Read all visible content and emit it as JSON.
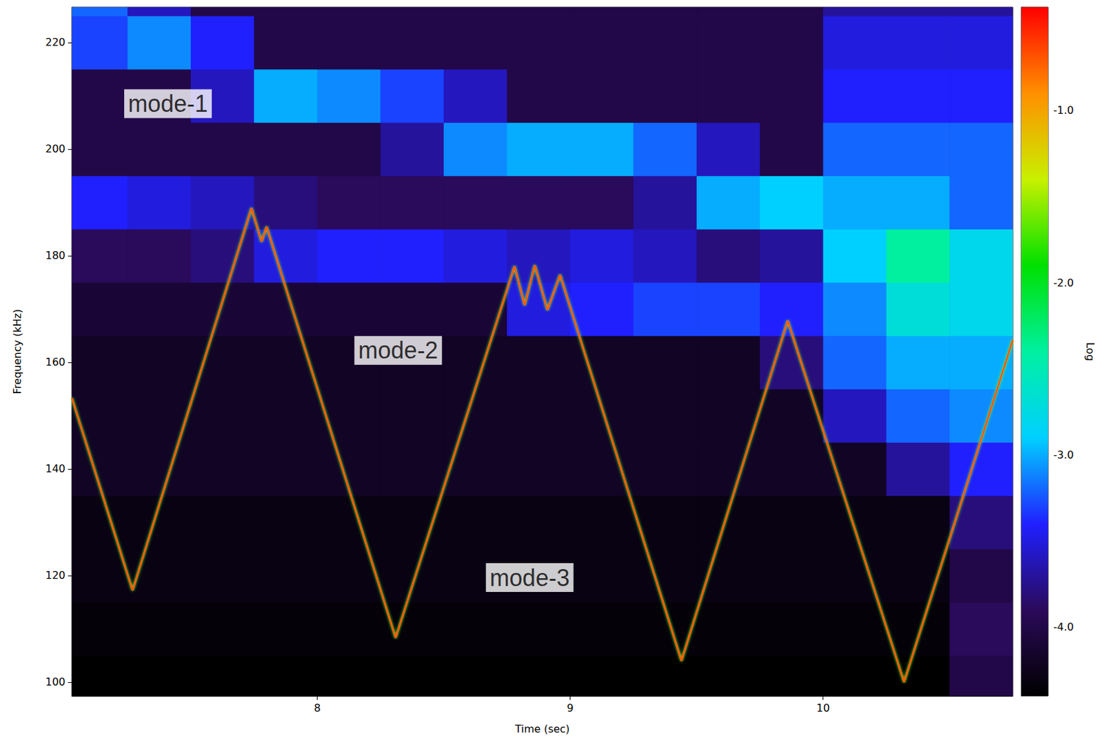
{
  "chart_data": {
    "type": "spectrogram",
    "xlabel": "Time (sec)",
    "ylabel": "Frequency (kHz)",
    "xlim": [
      7.03,
      10.75
    ],
    "xticks": [
      8,
      9,
      10
    ],
    "ylim": [
      97.4,
      226.6
    ],
    "yticks": [
      100,
      120,
      140,
      160,
      180,
      200,
      220
    ],
    "grid": false,
    "spectrogram": {
      "t_edges": [
        7.0,
        7.25,
        7.5,
        7.75,
        8.0,
        8.25,
        8.5,
        8.75,
        9.0,
        9.25,
        9.5,
        9.75,
        10.0,
        10.25,
        10.5,
        10.75
      ],
      "f_edges": [
        95,
        105,
        115,
        125,
        135,
        145,
        155,
        165,
        175,
        185,
        195,
        205,
        215,
        225,
        235
      ],
      "values": [
        [
          -4.4,
          -4.4,
          -4.4,
          -4.4,
          -4.4,
          -4.4,
          -4.4,
          -4.4,
          -4.4,
          -4.4,
          -4.4,
          -4.4,
          -4.4,
          -4.4,
          -4.0
        ],
        [
          -4.35,
          -4.35,
          -4.35,
          -4.35,
          -4.35,
          -4.35,
          -4.35,
          -4.35,
          -4.35,
          -4.35,
          -4.35,
          -4.35,
          -4.35,
          -4.35,
          -3.9
        ],
        [
          -4.3,
          -4.3,
          -4.3,
          -4.3,
          -4.3,
          -4.3,
          -4.3,
          -4.3,
          -4.3,
          -4.3,
          -4.3,
          -4.3,
          -4.3,
          -4.3,
          -4.0
        ],
        [
          -4.3,
          -4.3,
          -4.3,
          -4.3,
          -4.3,
          -4.3,
          -4.3,
          -4.3,
          -4.3,
          -4.3,
          -4.3,
          -4.3,
          -4.3,
          -4.3,
          -3.8
        ],
        [
          -4.2,
          -4.2,
          -4.2,
          -4.2,
          -4.2,
          -4.2,
          -4.2,
          -4.2,
          -4.2,
          -4.2,
          -4.2,
          -4.2,
          -4.2,
          -3.7,
          -3.4
        ],
        [
          -4.2,
          -4.2,
          -4.2,
          -4.2,
          -4.2,
          -4.2,
          -4.2,
          -4.2,
          -4.2,
          -4.2,
          -4.2,
          -4.2,
          -3.6,
          -3.2,
          -3.1
        ],
        [
          -4.2,
          -4.2,
          -4.2,
          -4.2,
          -4.2,
          -4.2,
          -4.2,
          -4.2,
          -4.2,
          -4.2,
          -4.2,
          -3.8,
          -3.2,
          -3.0,
          -3.0
        ],
        [
          -4.1,
          -4.1,
          -4.1,
          -4.1,
          -4.1,
          -4.1,
          -4.1,
          -3.5,
          -3.4,
          -3.3,
          -3.3,
          -3.4,
          -3.1,
          -2.7,
          -2.8
        ],
        [
          -3.9,
          -3.9,
          -3.8,
          -3.5,
          -3.4,
          -3.4,
          -3.5,
          -3.6,
          -3.5,
          -3.6,
          -3.8,
          -3.7,
          -2.9,
          -2.4,
          -2.8
        ],
        [
          -3.4,
          -3.5,
          -3.6,
          -3.8,
          -3.9,
          -3.9,
          -3.9,
          -3.9,
          -3.9,
          -3.7,
          -3.0,
          -2.9,
          -3.0,
          -3.0,
          -3.2
        ],
        [
          -4.0,
          -4.0,
          -4.0,
          -4.0,
          -4.0,
          -3.7,
          -3.1,
          -3.0,
          -3.0,
          -3.2,
          -3.6,
          -4.0,
          -3.2,
          -3.2,
          -3.2
        ],
        [
          -4.0,
          -4.0,
          -3.6,
          -3.0,
          -3.1,
          -3.3,
          -3.6,
          -4.0,
          -4.0,
          -4.0,
          -4.0,
          -4.0,
          -3.4,
          -3.4,
          -3.4
        ],
        [
          -3.3,
          -3.1,
          -3.4,
          -4.0,
          -4.0,
          -4.0,
          -4.0,
          -4.0,
          -4.0,
          -4.0,
          -4.0,
          -4.0,
          -3.5,
          -3.5,
          -3.5
        ],
        [
          -3.2,
          -3.6,
          -4.0,
          -4.0,
          -4.0,
          -4.0,
          -4.0,
          -4.0,
          -4.0,
          -4.0,
          -4.0,
          -4.0,
          -3.7,
          -3.7,
          -3.7
        ]
      ]
    },
    "colorbar": {
      "label": "Log",
      "range": [
        -4.4,
        -0.4
      ],
      "ticks": [
        {
          "value": -4,
          "label": "-4.0"
        },
        {
          "value": -3,
          "label": "-3.0"
        },
        {
          "value": -2,
          "label": "-2.0"
        },
        {
          "value": -1,
          "label": "-1.0"
        }
      ]
    },
    "series": [
      {
        "type": "line",
        "color": "#ff5a00",
        "line_style": "solid",
        "x": [
          7.03,
          7.27,
          7.74,
          7.78,
          7.8,
          8.31,
          8.78,
          8.82,
          8.86,
          8.91,
          8.96,
          9.44,
          9.86,
          10.32,
          10.75
        ],
        "values": [
          153.3,
          117.2,
          188.9,
          182.6,
          185.4,
          108.3,
          178.0,
          170.7,
          178.2,
          169.8,
          176.4,
          104.0,
          167.8,
          100.0,
          164.2
        ]
      }
    ],
    "annotations": [
      {
        "text": "mode-1",
        "x": 7.41,
        "y": 208.5
      },
      {
        "text": "mode-2",
        "x": 8.32,
        "y": 162.2
      },
      {
        "text": "mode-3",
        "x": 8.84,
        "y": 119.6
      }
    ]
  }
}
